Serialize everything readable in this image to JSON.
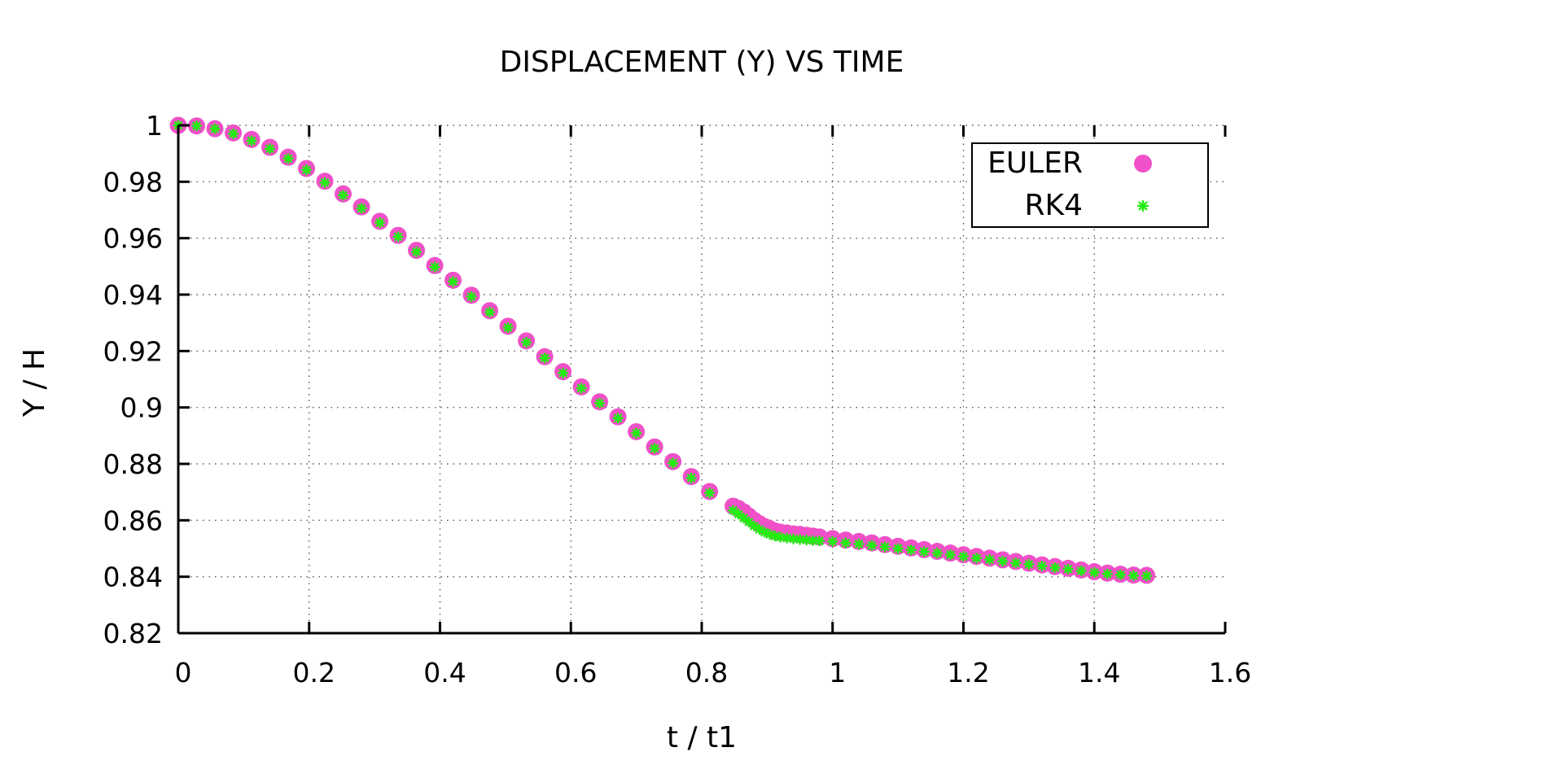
{
  "chart_data": {
    "type": "scatter",
    "title": "DISPLACEMENT (Y) VS TIME",
    "xlabel": "t / t1",
    "ylabel": "Y / H",
    "xlim": [
      0,
      1.6
    ],
    "ylim": [
      0.82,
      1.0
    ],
    "xticks": [
      "0",
      "0.2",
      "0.4",
      "0.6",
      "0.8",
      "1",
      "1.2",
      "1.4",
      "1.6"
    ],
    "yticks": [
      "0.82",
      "0.84",
      "0.86",
      "0.88",
      "0.9",
      "0.92",
      "0.94",
      "0.96",
      "0.98",
      "1"
    ],
    "grid": true,
    "legend_position": "top-right",
    "series": [
      {
        "name": "EULER",
        "marker": "circle",
        "color": "#f050c8",
        "points": [
          [
            0.0,
            1.0
          ],
          [
            0.028,
            0.9998
          ],
          [
            0.056,
            0.9988
          ],
          [
            0.084,
            0.9973
          ],
          [
            0.112,
            0.995
          ],
          [
            0.14,
            0.9922
          ],
          [
            0.168,
            0.9887
          ],
          [
            0.196,
            0.9847
          ],
          [
            0.224,
            0.9802
          ],
          [
            0.252,
            0.9757
          ],
          [
            0.28,
            0.9711
          ],
          [
            0.308,
            0.966
          ],
          [
            0.336,
            0.961
          ],
          [
            0.364,
            0.9557
          ],
          [
            0.392,
            0.9503
          ],
          [
            0.42,
            0.9451
          ],
          [
            0.448,
            0.9398
          ],
          [
            0.476,
            0.9343
          ],
          [
            0.504,
            0.9288
          ],
          [
            0.532,
            0.9236
          ],
          [
            0.56,
            0.918
          ],
          [
            0.588,
            0.9127
          ],
          [
            0.616,
            0.9073
          ],
          [
            0.644,
            0.902
          ],
          [
            0.672,
            0.8967
          ],
          [
            0.7,
            0.8914
          ],
          [
            0.728,
            0.886
          ],
          [
            0.756,
            0.8808
          ],
          [
            0.784,
            0.8755
          ],
          [
            0.812,
            0.8702
          ],
          [
            0.848,
            0.865
          ],
          [
            0.856,
            0.8642
          ],
          [
            0.864,
            0.863
          ],
          [
            0.872,
            0.8615
          ],
          [
            0.88,
            0.86
          ],
          [
            0.888,
            0.8588
          ],
          [
            0.896,
            0.8578
          ],
          [
            0.904,
            0.857
          ],
          [
            0.912,
            0.8562
          ],
          [
            0.92,
            0.8558
          ],
          [
            0.93,
            0.8555
          ],
          [
            0.94,
            0.8552
          ],
          [
            0.95,
            0.855
          ],
          [
            0.96,
            0.8547
          ],
          [
            0.97,
            0.8544
          ],
          [
            0.98,
            0.8541
          ],
          [
            1.0,
            0.8535
          ],
          [
            1.02,
            0.853
          ],
          [
            1.04,
            0.8525
          ],
          [
            1.06,
            0.852
          ],
          [
            1.08,
            0.8514
          ],
          [
            1.1,
            0.8508
          ],
          [
            1.12,
            0.8502
          ],
          [
            1.14,
            0.8496
          ],
          [
            1.16,
            0.849
          ],
          [
            1.18,
            0.8484
          ],
          [
            1.2,
            0.8478
          ],
          [
            1.22,
            0.8472
          ],
          [
            1.24,
            0.8466
          ],
          [
            1.26,
            0.846
          ],
          [
            1.28,
            0.8454
          ],
          [
            1.3,
            0.8448
          ],
          [
            1.32,
            0.8442
          ],
          [
            1.34,
            0.8436
          ],
          [
            1.36,
            0.843
          ],
          [
            1.38,
            0.8424
          ],
          [
            1.4,
            0.8418
          ],
          [
            1.42,
            0.8413
          ],
          [
            1.44,
            0.8409
          ],
          [
            1.46,
            0.8406
          ],
          [
            1.48,
            0.8405
          ]
        ]
      },
      {
        "name": "RK4",
        "marker": "star",
        "color": "#22ee11",
        "points": [
          [
            0.0,
            1.0
          ],
          [
            0.028,
            0.9998
          ],
          [
            0.056,
            0.9988
          ],
          [
            0.084,
            0.997
          ],
          [
            0.112,
            0.9945
          ],
          [
            0.14,
            0.9917
          ],
          [
            0.168,
            0.9882
          ],
          [
            0.196,
            0.9842
          ],
          [
            0.224,
            0.9797
          ],
          [
            0.252,
            0.9752
          ],
          [
            0.28,
            0.9706
          ],
          [
            0.308,
            0.9655
          ],
          [
            0.336,
            0.9605
          ],
          [
            0.364,
            0.9552
          ],
          [
            0.392,
            0.9498
          ],
          [
            0.42,
            0.9446
          ],
          [
            0.448,
            0.9393
          ],
          [
            0.476,
            0.9338
          ],
          [
            0.504,
            0.9283
          ],
          [
            0.532,
            0.9231
          ],
          [
            0.56,
            0.9175
          ],
          [
            0.588,
            0.9122
          ],
          [
            0.616,
            0.9068
          ],
          [
            0.644,
            0.9015
          ],
          [
            0.672,
            0.8962
          ],
          [
            0.7,
            0.8909
          ],
          [
            0.728,
            0.8855
          ],
          [
            0.756,
            0.8803
          ],
          [
            0.784,
            0.875
          ],
          [
            0.812,
            0.8697
          ],
          [
            0.848,
            0.8635
          ],
          [
            0.856,
            0.8622
          ],
          [
            0.864,
            0.8608
          ],
          [
            0.872,
            0.8594
          ],
          [
            0.88,
            0.858
          ],
          [
            0.888,
            0.8568
          ],
          [
            0.896,
            0.8558
          ],
          [
            0.904,
            0.855
          ],
          [
            0.912,
            0.8544
          ],
          [
            0.92,
            0.854
          ],
          [
            0.93,
            0.8537
          ],
          [
            0.94,
            0.8534
          ],
          [
            0.95,
            0.8532
          ],
          [
            0.96,
            0.853
          ],
          [
            0.97,
            0.8528
          ],
          [
            0.98,
            0.8527
          ],
          [
            1.0,
            0.8525
          ],
          [
            1.02,
            0.852
          ],
          [
            1.04,
            0.8516
          ],
          [
            1.06,
            0.8511
          ],
          [
            1.08,
            0.8506
          ],
          [
            1.1,
            0.85
          ],
          [
            1.12,
            0.8495
          ],
          [
            1.14,
            0.8489
          ],
          [
            1.16,
            0.8484
          ],
          [
            1.18,
            0.8478
          ],
          [
            1.2,
            0.8472
          ],
          [
            1.22,
            0.8466
          ],
          [
            1.24,
            0.8461
          ],
          [
            1.26,
            0.8455
          ],
          [
            1.28,
            0.8449
          ],
          [
            1.3,
            0.8444
          ],
          [
            1.32,
            0.8438
          ],
          [
            1.34,
            0.8432
          ],
          [
            1.36,
            0.8427
          ],
          [
            1.38,
            0.8421
          ],
          [
            1.4,
            0.8415
          ],
          [
            1.42,
            0.841
          ],
          [
            1.44,
            0.8407
          ],
          [
            1.46,
            0.8404
          ],
          [
            1.48,
            0.8403
          ]
        ]
      }
    ]
  }
}
